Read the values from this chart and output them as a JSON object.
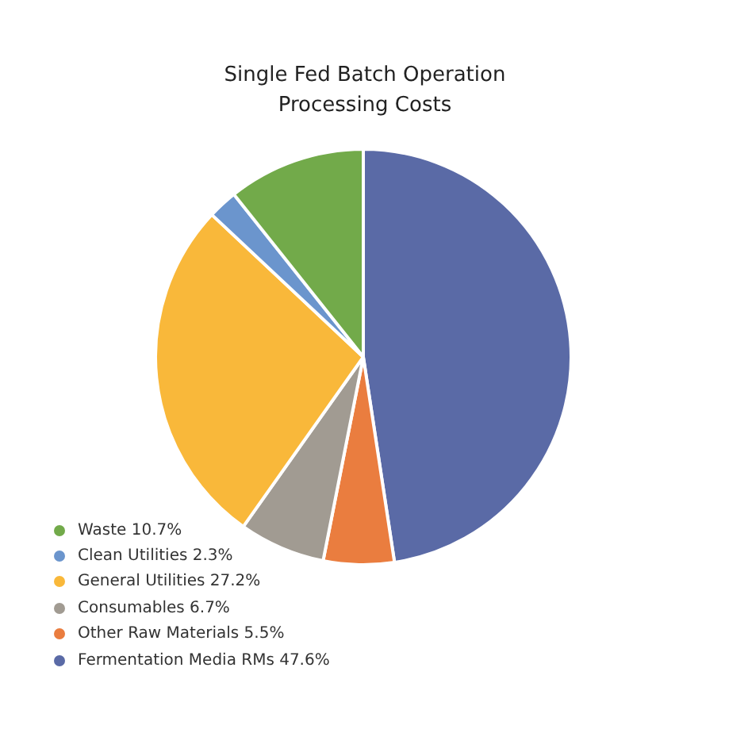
{
  "chart_data": {
    "type": "pie",
    "title": "Single Fed Batch Operation Processing Costs",
    "categories": [
      "Waste 10.7%",
      "Clean Utilities 2.3%",
      "General Utilities 27.2%",
      "Consumables 6.7%",
      "Other Raw Materials 5.5%",
      "Fermentation Media RMs 47.6%"
    ],
    "values": [
      10.7,
      2.3,
      27.2,
      6.7,
      5.5,
      47.6
    ],
    "colors": [
      "#72aa4a",
      "#6b95cd",
      "#f9b83a",
      "#a19b92",
      "#ea7d3f",
      "#5a6aa6"
    ],
    "legend": "bottom left"
  }
}
